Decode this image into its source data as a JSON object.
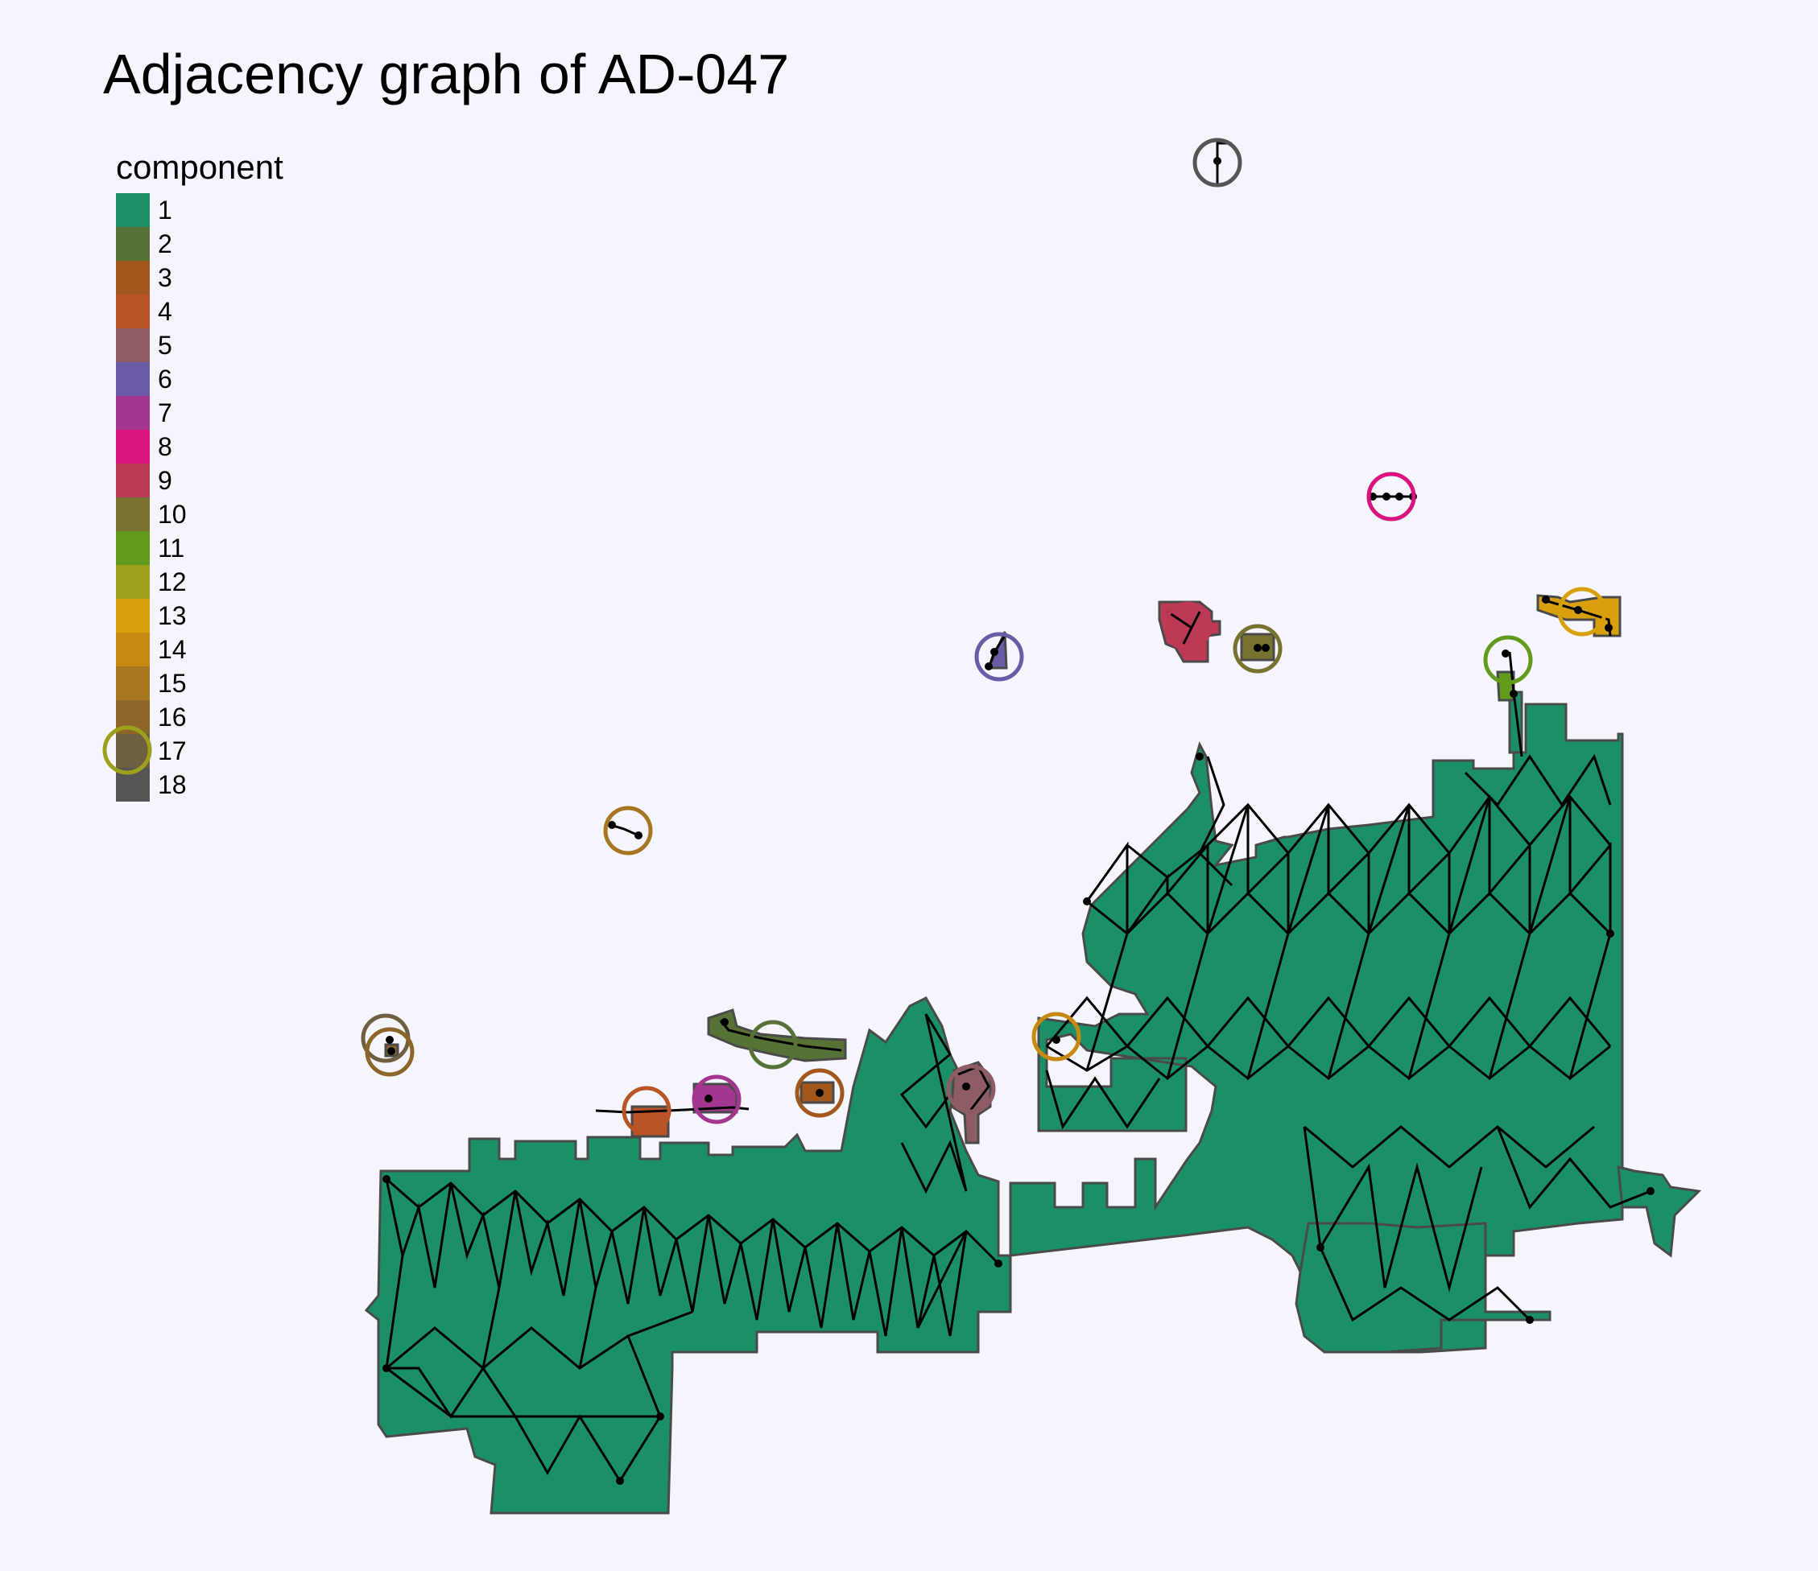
{
  "title": "Adjacency graph of AD-047",
  "legend": {
    "title": "component",
    "items": [
      {
        "label": "1",
        "color": "#1b9068"
      },
      {
        "label": "2",
        "color": "#567237"
      },
      {
        "label": "3",
        "color": "#a2581c"
      },
      {
        "label": "4",
        "color": "#b95426"
      },
      {
        "label": "5",
        "color": "#8e5c63"
      },
      {
        "label": "6",
        "color": "#6b5aa6"
      },
      {
        "label": "7",
        "color": "#a3378f"
      },
      {
        "label": "8",
        "color": "#d8147e"
      },
      {
        "label": "9",
        "color": "#bc3a55"
      },
      {
        "label": "10",
        "color": "#77722f"
      },
      {
        "label": "11",
        "color": "#629a1d"
      },
      {
        "label": "12",
        "color": "#9da01d"
      },
      {
        "label": "13",
        "color": "#d8a00c"
      },
      {
        "label": "14",
        "color": "#c68a12"
      },
      {
        "label": "15",
        "color": "#a87520"
      },
      {
        "label": "16",
        "color": "#8b6628"
      },
      {
        "label": "17",
        "color": "#6e5f3f"
      },
      {
        "label": "18",
        "color": "#555555"
      }
    ]
  },
  "colors": {
    "background": "#f5f6fd",
    "boundary": "#4a4a4a",
    "edge": "#000000"
  }
}
